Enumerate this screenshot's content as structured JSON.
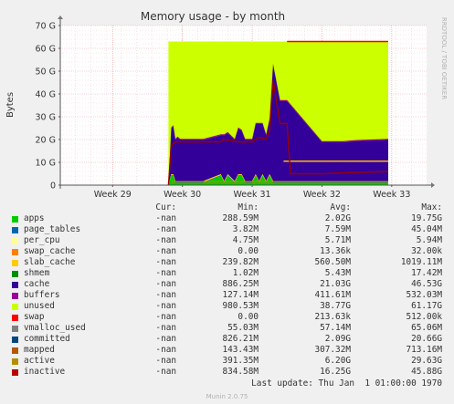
{
  "chart_data": {
    "type": "area",
    "title": "Memory usage - by month",
    "ylabel": "Bytes",
    "side_label": "RRDTOOL / TOBI OETIKER",
    "y_unit": "G",
    "ylim": [
      0,
      70
    ],
    "y_ticks": [
      0,
      10,
      20,
      30,
      40,
      50,
      60,
      70
    ],
    "x_ticks": [
      "Week 29",
      "Week 30",
      "Week 31",
      "Week 32",
      "Week 33"
    ],
    "x_tick_weeks": [
      29,
      30,
      31,
      32,
      33
    ],
    "xlim": [
      28.25,
      33.5
    ],
    "grid": true,
    "stack": {
      "x": [
        29.8,
        29.84,
        29.87,
        29.9,
        29.93,
        29.97,
        30.0,
        30.1,
        30.3,
        30.55,
        30.6,
        30.65,
        30.75,
        30.8,
        30.85,
        30.9,
        30.95,
        31.0,
        31.05,
        31.1,
        31.15,
        31.2,
        31.25,
        31.3,
        31.4,
        31.45,
        31.5,
        32.0,
        32.1,
        32.3,
        32.5,
        32.95
      ],
      "layers": [
        {
          "name": "apps",
          "color": "#00CC00",
          "values": [
            0,
            4,
            4,
            1,
            1,
            1,
            1,
            1,
            1,
            4,
            1,
            4,
            1,
            4,
            4,
            1,
            1,
            1,
            4,
            1,
            4,
            1,
            4,
            1,
            1,
            1,
            1,
            1,
            1,
            1,
            1,
            1
          ]
        },
        {
          "name": "page_tables",
          "color": "#0066B3",
          "values": [
            0,
            0.3,
            0.3,
            0.3,
            0.3,
            0.3,
            0.3,
            0.3,
            0.3,
            0.3,
            0.3,
            0.3,
            0.3,
            0.3,
            0.3,
            0.3,
            0.3,
            0.3,
            0.3,
            0.3,
            0.3,
            0.3,
            0.3,
            0.3,
            0.3,
            0.3,
            0.3,
            0.3,
            0.3,
            0.3,
            0.3,
            0.3
          ]
        },
        {
          "name": "slab_cache",
          "color": "#FFCC00",
          "values": [
            0,
            0.5,
            0.5,
            0.5,
            0.5,
            0.5,
            0.5,
            0.5,
            0.5,
            0.5,
            0.5,
            0.5,
            0.5,
            0.5,
            0.5,
            0.5,
            0.5,
            0.5,
            0.5,
            0.5,
            0.5,
            0.5,
            0.5,
            0.5,
            0.5,
            0.5,
            0.5,
            0.5,
            0.5,
            0.5,
            0.5,
            0.5
          ]
        },
        {
          "name": "cache",
          "color": "#330099",
          "values": [
            0,
            20,
            21,
            18,
            19,
            18,
            18,
            18,
            18,
            17,
            20,
            18,
            18,
            20,
            19,
            18,
            18,
            18,
            22,
            25,
            22,
            20,
            24,
            51,
            35,
            35,
            35,
            17,
            17,
            17,
            17.5,
            18
          ]
        },
        {
          "name": "buffers",
          "color": "#990099",
          "values": [
            0,
            0.5,
            0.5,
            0.5,
            0.5,
            0.5,
            0.5,
            0.5,
            0.5,
            0.5,
            0.5,
            0.5,
            0.5,
            0.5,
            0.5,
            0.5,
            0.5,
            0.5,
            0.5,
            0.5,
            0.5,
            0.5,
            0.5,
            0.5,
            0.5,
            0.5,
            0.5,
            0.5,
            0.5,
            0.5,
            0.5,
            0.5
          ]
        }
      ],
      "unused": {
        "name": "unused",
        "color": "#CCFF00",
        "top": 63
      }
    },
    "lines": [
      {
        "name": "swap",
        "color": "#FF0000",
        "x": [
          31.5,
          32.95
        ],
        "values": [
          63,
          63
        ]
      },
      {
        "name": "committed",
        "color": "#FFBC00",
        "x": [
          31.45,
          32.95
        ],
        "values": [
          10.5,
          10.5
        ]
      },
      {
        "name": "active",
        "color": "#990000",
        "x": [
          29.8,
          29.84,
          29.9,
          30.0,
          30.55,
          30.6,
          30.8,
          30.9,
          31.0,
          31.1,
          31.2,
          31.25,
          31.3,
          31.4,
          31.5,
          31.55,
          31.7,
          32.0,
          32.4,
          32.95
        ],
        "values": [
          0,
          17,
          19,
          19,
          19,
          20,
          19,
          19,
          19,
          21,
          20,
          24,
          46,
          27,
          27,
          5,
          5,
          5,
          5.5,
          6
        ]
      },
      {
        "name": "mapped",
        "color": "#CC7700",
        "x": [
          29.84,
          32.95
        ],
        "values": [
          1.5,
          1.5
        ]
      }
    ],
    "legend": {
      "headers": [
        "Cur:",
        "Min:",
        "Avg:",
        "Max:"
      ],
      "rows": [
        {
          "name": "apps",
          "color": "#00CC00",
          "cur": "-nan",
          "min": "288.59M",
          "avg": "2.02G",
          "max": "19.75G"
        },
        {
          "name": "page_tables",
          "color": "#0066B3",
          "cur": "-nan",
          "min": "3.82M",
          "avg": "7.59M",
          "max": "45.04M"
        },
        {
          "name": "per_cpu",
          "color": "#FFFF99",
          "cur": "-nan",
          "min": "4.75M",
          "avg": "5.71M",
          "max": "5.94M"
        },
        {
          "name": "swap_cache",
          "color": "#FF8000",
          "cur": "-nan",
          "min": "0.00",
          "avg": "13.36k",
          "max": "32.00k"
        },
        {
          "name": "slab_cache",
          "color": "#FFCC00",
          "cur": "-nan",
          "min": "239.82M",
          "avg": "560.50M",
          "max": "1019.11M"
        },
        {
          "name": "shmem",
          "color": "#008F00",
          "cur": "-nan",
          "min": "1.02M",
          "avg": "5.43M",
          "max": "17.42M"
        },
        {
          "name": "cache",
          "color": "#330099",
          "cur": "-nan",
          "min": "886.25M",
          "avg": "21.03G",
          "max": "46.53G"
        },
        {
          "name": "buffers",
          "color": "#990099",
          "cur": "-nan",
          "min": "127.14M",
          "avg": "411.61M",
          "max": "532.03M"
        },
        {
          "name": "unused",
          "color": "#CCFF00",
          "cur": "-nan",
          "min": "980.53M",
          "avg": "38.77G",
          "max": "61.17G"
        },
        {
          "name": "swap",
          "color": "#FF0000",
          "cur": "-nan",
          "min": "0.00",
          "avg": "213.63k",
          "max": "512.00k"
        },
        {
          "name": "vmalloc_used",
          "color": "#808080",
          "cur": "-nan",
          "min": "55.03M",
          "avg": "57.14M",
          "max": "65.06M"
        },
        {
          "name": "committed",
          "color": "#00487D",
          "cur": "-nan",
          "min": "826.21M",
          "avg": "2.09G",
          "max": "20.66G"
        },
        {
          "name": "mapped",
          "color": "#B35A00",
          "cur": "-nan",
          "min": "143.43M",
          "avg": "307.32M",
          "max": "713.16M"
        },
        {
          "name": "active",
          "color": "#B38F00",
          "cur": "-nan",
          "min": "391.35M",
          "avg": "6.20G",
          "max": "29.63G"
        },
        {
          "name": "inactive",
          "color": "#BA0000",
          "cur": "-nan",
          "min": "834.58M",
          "avg": "16.25G",
          "max": "45.88G"
        }
      ]
    },
    "last_update": "Last update: Thu Jan  1 01:00:00 1970",
    "generator": "Munin 2.0.75"
  }
}
